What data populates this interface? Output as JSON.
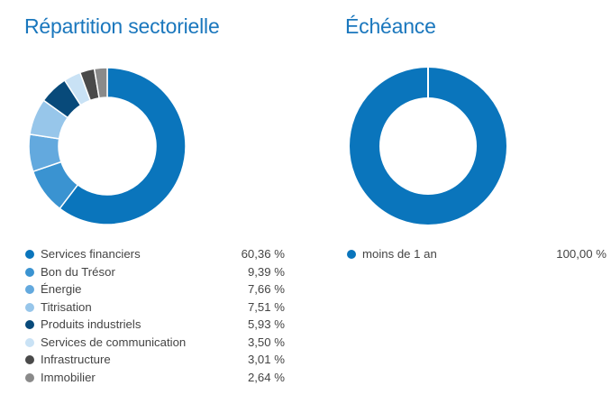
{
  "chart_data": [
    {
      "type": "donut",
      "title": "Répartition sectorielle",
      "categories": [
        "Services financiers",
        "Bon du Trésor",
        "Énergie",
        "Titrisation",
        "Produits industriels",
        "Services de communication",
        "Infrastructure",
        "Immobilier"
      ],
      "values": [
        60.36,
        9.39,
        7.66,
        7.51,
        5.93,
        3.5,
        3.01,
        2.64
      ],
      "value_labels": [
        "60,36 %",
        "9,39 %",
        "7,66 %",
        "7,51 %",
        "5,93 %",
        "3,50 %",
        "3,01 %",
        "2,64 %"
      ],
      "colors": [
        "#0a75bc",
        "#3a93d1",
        "#63a9de",
        "#97c6ea",
        "#084a7a",
        "#c9e2f5",
        "#4a4a4a",
        "#8a8a8a"
      ],
      "legend_position": "bottom"
    },
    {
      "type": "donut",
      "title": "Échéance",
      "categories": [
        "moins de 1 an"
      ],
      "values": [
        100.0
      ],
      "value_labels": [
        "100,00 %"
      ],
      "colors": [
        "#0a75bc"
      ],
      "legend_position": "bottom"
    }
  ]
}
